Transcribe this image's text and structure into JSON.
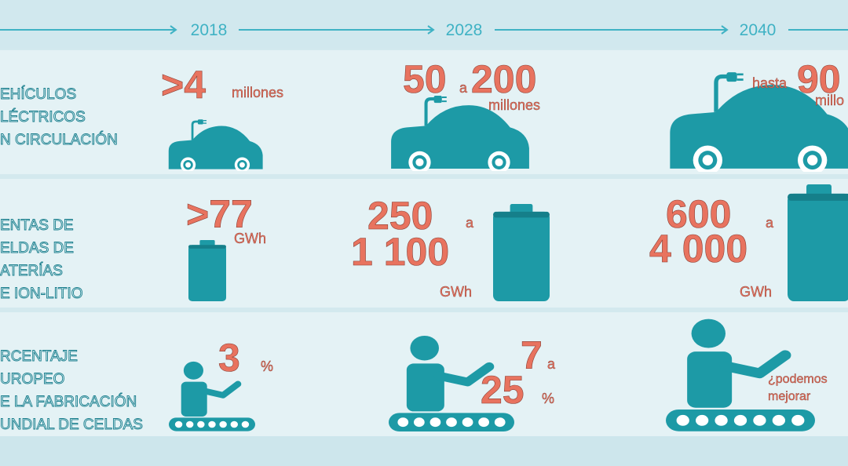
{
  "timeline": {
    "years": [
      "2018",
      "2028",
      "2040"
    ]
  },
  "rows": [
    {
      "label": [
        "EHÍCULOS",
        "LÉCTRICOS",
        "N CIRCULACIÓN"
      ],
      "cells": [
        [
          ">4",
          "millones"
        ],
        [
          "50",
          "a",
          "200",
          "millones"
        ],
        [
          "hasta",
          "90",
          "millo"
        ]
      ]
    },
    {
      "label": [
        "ENTAS DE",
        "ELDAS DE",
        "ATERÍAS",
        "E ION-LITIO"
      ],
      "cells": [
        [
          ">77",
          "GWh"
        ],
        [
          "250",
          "a",
          "1 100",
          "GWh"
        ],
        [
          "600",
          "a",
          "4 000",
          "GWh"
        ]
      ]
    },
    {
      "label": [
        "RCENTAJE",
        "UROPEO",
        "E LA FABRICACIÓN",
        "UNDIAL DE CELDAS"
      ],
      "cells": [
        [
          "3",
          "%"
        ],
        [
          "7",
          "a",
          "25",
          "%"
        ],
        [
          "¿podemos",
          "mejorar"
        ]
      ]
    }
  ]
}
